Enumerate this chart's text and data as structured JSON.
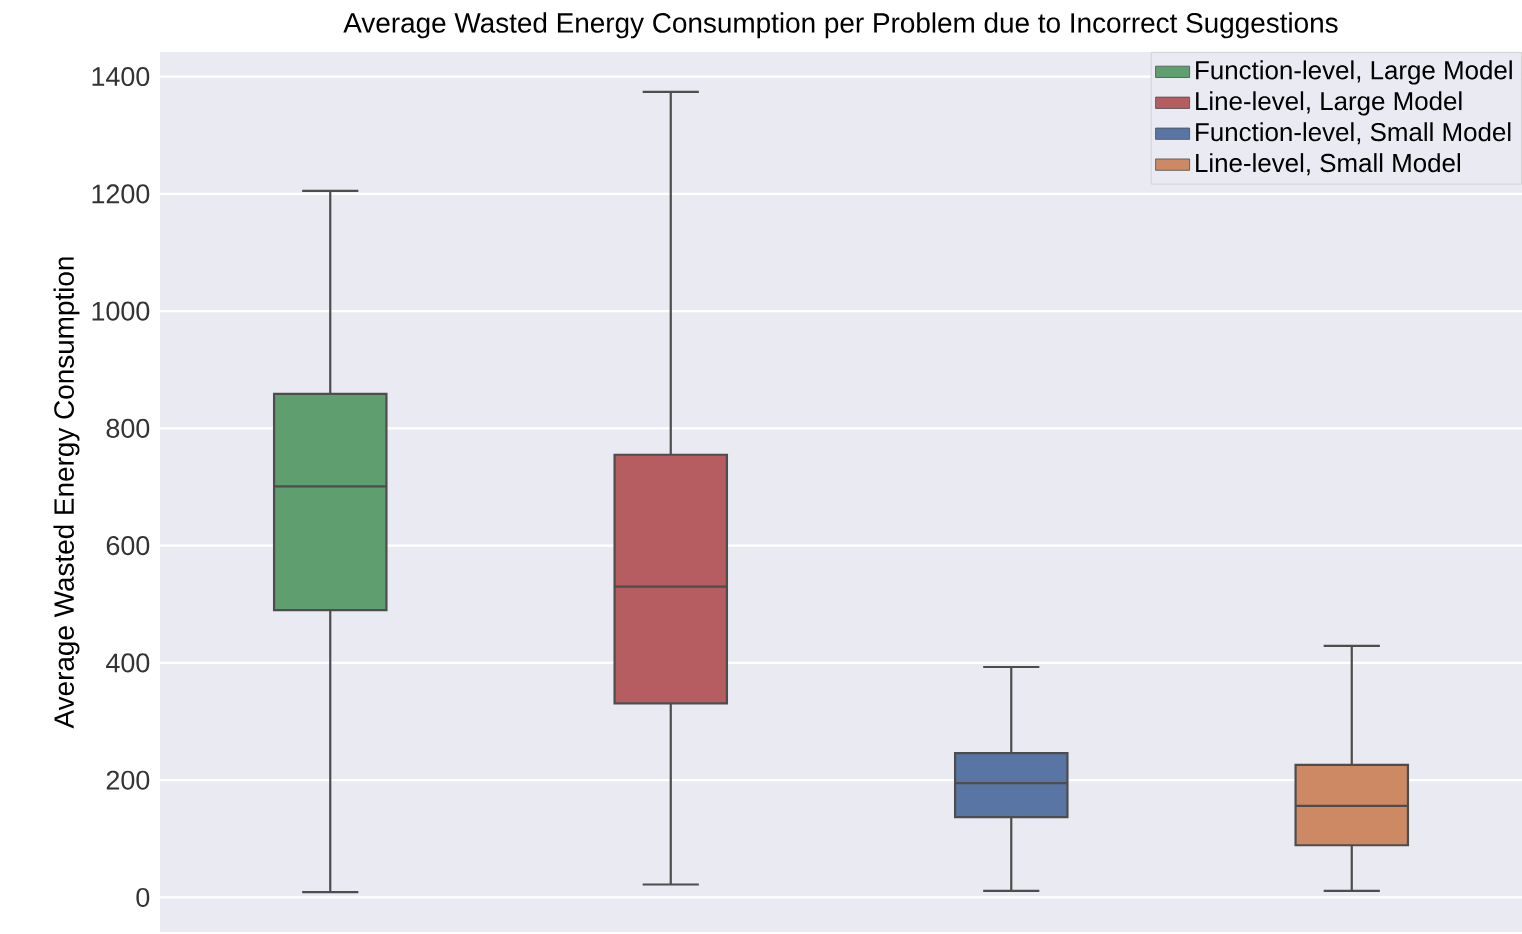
{
  "chart_data": {
    "type": "box",
    "title": "Average Wasted Energy Consumption per Problem due to Incorrect Suggestions",
    "ylabel": "Average Wasted Energy Consumption",
    "categories": [
      null,
      null,
      null,
      null
    ],
    "series": [
      {
        "name": "Function-level, Large Model",
        "color": "#5f9e6e",
        "boxes": [
          {
            "low": 9,
            "q1": 490,
            "median": 701,
            "q3": 859,
            "high": 1205
          },
          null,
          null,
          null
        ]
      },
      {
        "name": "Line-level, Large Model",
        "color": "#b55d60",
        "boxes": [
          null,
          {
            "low": 22,
            "q1": 331,
            "median": 530,
            "q3": 755,
            "high": 1374
          },
          null,
          null
        ]
      },
      {
        "name": "Function-level, Small Model",
        "color": "#5975a4",
        "boxes": [
          null,
          null,
          {
            "low": 11,
            "q1": 137,
            "median": 195,
            "q3": 246,
            "high": 393
          },
          null
        ]
      },
      {
        "name": "Line-level, Small Model",
        "color": "#cc8963",
        "boxes": [
          null,
          null,
          null,
          {
            "low": 11,
            "q1": 89,
            "median": 156,
            "q3": 226,
            "high": 429
          }
        ]
      }
    ],
    "ylim": [
      -59,
      1442
    ],
    "yticks": [
      0,
      200,
      400,
      600,
      800,
      1000,
      1200,
      1400
    ],
    "grid": "y",
    "legend": "top right"
  }
}
